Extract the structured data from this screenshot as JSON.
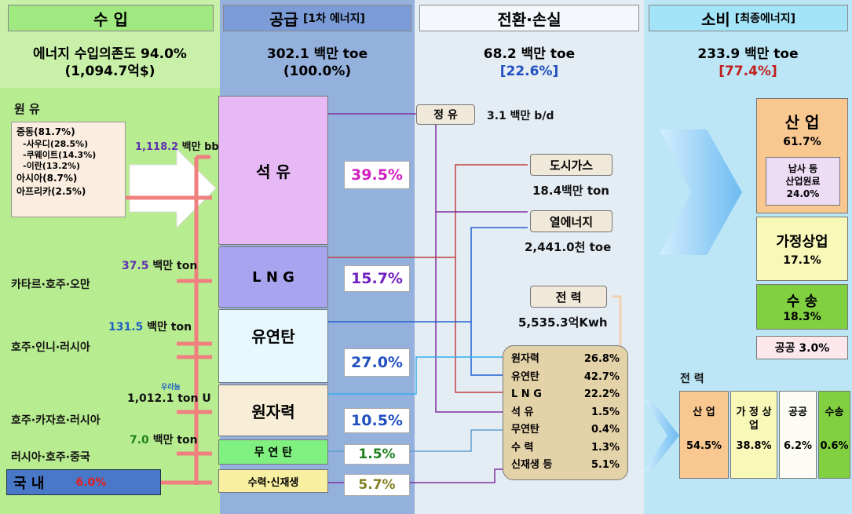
{
  "columns": [
    {
      "header": "수 입",
      "summary": [
        "에너지 수입의존도 94.0%",
        "(1,094.7억$)"
      ]
    },
    {
      "header": "공급",
      "header_sub": "[1차 에너지]",
      "summary": [
        "302.1 백만 toe",
        "(100.0%)"
      ]
    },
    {
      "header": "전환·손실",
      "summary": [
        "68.2 백만 toe",
        "[22.6%]"
      ]
    },
    {
      "header": "소비",
      "header_sub": "[최종에너지]",
      "summary": [
        "233.9 백만 toe",
        "[77.4%]"
      ]
    }
  ],
  "imports": {
    "crude_title": "원 유",
    "crude_lines": [
      "중동(81.7%)",
      "-사우디(28.5%)",
      "-쿠웨이트(14.3%)",
      "-이란(13.2%)",
      "아시아(8.7%)",
      "아프리카(2.5%)"
    ],
    "crude_amount": "1,118.2",
    "crude_unit": "백만 bbl",
    "sources": [
      {
        "origin": "카타르·호주·오만",
        "amount": "37.5",
        "unit": "백만 ton"
      },
      {
        "origin": "호주·인니·러시아",
        "amount": "131.5",
        "unit": "백만 ton"
      },
      {
        "origin": "호주·카자흐·러시아",
        "amount": "1,012.1 ton U",
        "note": "우라늄"
      },
      {
        "origin": "러시아·호주·중국",
        "amount": "7.0",
        "unit": "백만 ton"
      }
    ],
    "domestic": {
      "label": "국 내",
      "share": "6.0%"
    }
  },
  "supply": [
    {
      "name": "석 유",
      "share": "39.5%"
    },
    {
      "name": "L N G",
      "share": "15.7%"
    },
    {
      "name": "유연탄",
      "share": "27.0%"
    },
    {
      "name": "원자력",
      "share": "10.5%"
    },
    {
      "name": "무 연 탄",
      "share": "1.5%"
    },
    {
      "name": "수력·신재생",
      "share": "5.7%"
    }
  ],
  "conversion": {
    "refinery": {
      "name": "정 유",
      "amount": "3.1 백만 b/d"
    },
    "city_gas": {
      "name": "도시가스",
      "amount": "18.4백만 ton"
    },
    "heat": {
      "name": "열에너지",
      "amount": "2,441.0천 toe"
    },
    "power": {
      "name": "전 력",
      "amount": "5,535.3억Kwh"
    },
    "power_mix": [
      [
        "원자력",
        "26.8%"
      ],
      [
        "유연탄",
        "42.7%"
      ],
      [
        "L N G",
        "22.2%"
      ],
      [
        "석 유",
        "1.5%"
      ],
      [
        "무연탄",
        "0.4%"
      ],
      [
        "수 력",
        "1.3%"
      ],
      [
        "신재생 등",
        "5.1%"
      ]
    ]
  },
  "consumption": {
    "industry": {
      "name": "산 업",
      "share": "61.7%",
      "sub": [
        "납사 등",
        "산업원료",
        "24.0%"
      ]
    },
    "household": {
      "name": "가정상업",
      "share": "17.1%"
    },
    "transport": {
      "name": "수 송",
      "share": "18.3%"
    },
    "public": {
      "name": "공공 3.0%"
    },
    "power_title": "전 력",
    "power": [
      {
        "name": "산 업",
        "share": "54.5%"
      },
      {
        "name": "가 정 상 업",
        "share": "38.8%"
      },
      {
        "name": "공공",
        "share": "6.2%"
      },
      {
        "name": "수송",
        "share": "0.6%"
      }
    ]
  }
}
